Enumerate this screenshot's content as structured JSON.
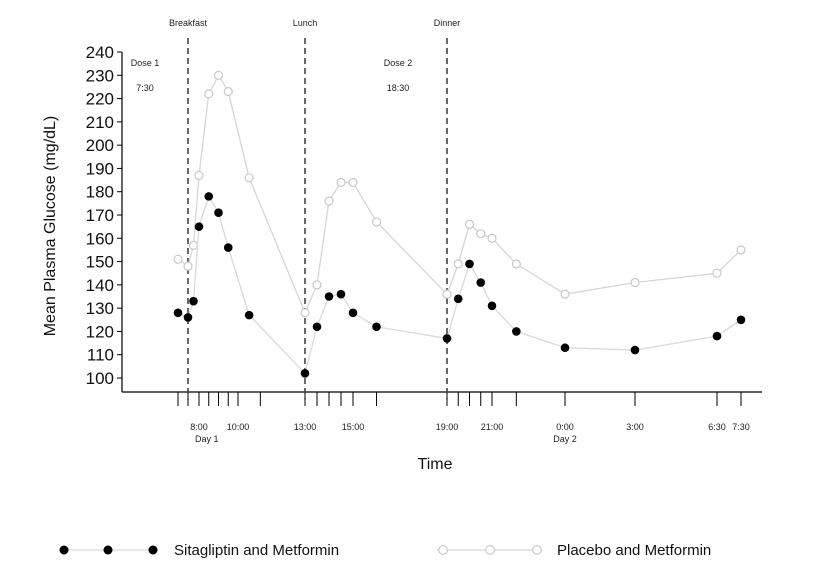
{
  "chart_data": {
    "type": "line",
    "xlabel": "Time",
    "ylabel": "Mean Plasma Glucose (mg/dL)",
    "ylim": [
      100,
      240
    ],
    "yticks": [
      100,
      110,
      120,
      130,
      140,
      150,
      160,
      170,
      180,
      190,
      200,
      210,
      220,
      230,
      240
    ],
    "grid": false,
    "legend_position": "bottom",
    "x_tick_labels": [
      {
        "t": 8,
        "label": "8:00"
      },
      {
        "t": 10,
        "label": "10:00"
      },
      {
        "t": 13,
        "label": "13:00"
      },
      {
        "t": 15,
        "label": "15:00"
      },
      {
        "t": 19,
        "label": "19:00"
      },
      {
        "t": 21,
        "label": "21:00"
      },
      {
        "t": 24,
        "label": "0:00"
      },
      {
        "t": 27,
        "label": "3:00"
      },
      {
        "t": 30.5,
        "label": "6:30"
      },
      {
        "t": 31.5,
        "label": "7:30"
      }
    ],
    "x_minor_ticks": [
      7,
      7.5,
      8,
      8.5,
      9,
      9.5,
      10,
      11,
      13,
      13.5,
      14,
      14.5,
      15,
      16,
      19,
      19.5,
      20,
      20.5,
      21,
      22,
      24,
      27,
      30.5,
      31.5
    ],
    "day_labels": [
      {
        "t": 8.4,
        "label": "Day 1"
      },
      {
        "t": 24,
        "label": "Day 2"
      }
    ],
    "meal_lines": [
      {
        "t": 7.5,
        "label": "Breakfast"
      },
      {
        "t": 13,
        "label": "Lunch"
      },
      {
        "t": 19,
        "label": "Dinner"
      }
    ],
    "dose_annotations": [
      {
        "t": 7.3,
        "label": "Dose 1",
        "time": "7:30"
      },
      {
        "t": 18.3,
        "label": "Dose 2",
        "time": "18:30"
      }
    ],
    "series": [
      {
        "name": "Sitagliptin and Metformin",
        "marker": "filled",
        "color": "#000000",
        "points": [
          {
            "t": 7,
            "y": 128
          },
          {
            "t": 7.5,
            "y": 126
          },
          {
            "t": 7.75,
            "y": 133
          },
          {
            "t": 8,
            "y": 165
          },
          {
            "t": 8.5,
            "y": 178
          },
          {
            "t": 9,
            "y": 171
          },
          {
            "t": 9.5,
            "y": 156
          },
          {
            "t": 10.5,
            "y": 127
          },
          {
            "t": 13,
            "y": 102
          },
          {
            "t": 13.5,
            "y": 122
          },
          {
            "t": 14,
            "y": 135
          },
          {
            "t": 14.5,
            "y": 136
          },
          {
            "t": 15,
            "y": 128
          },
          {
            "t": 16,
            "y": 122
          },
          {
            "t": 19,
            "y": 117
          },
          {
            "t": 19.5,
            "y": 134
          },
          {
            "t": 20,
            "y": 149
          },
          {
            "t": 20.5,
            "y": 141
          },
          {
            "t": 21,
            "y": 131
          },
          {
            "t": 22,
            "y": 120
          },
          {
            "t": 24,
            "y": 113
          },
          {
            "t": 27,
            "y": 112
          },
          {
            "t": 30.5,
            "y": 118
          },
          {
            "t": 31.5,
            "y": 125
          }
        ]
      },
      {
        "name": "Placebo and Metformin",
        "marker": "open",
        "color": "#cccccc",
        "points": [
          {
            "t": 7,
            "y": 151
          },
          {
            "t": 7.5,
            "y": 148
          },
          {
            "t": 7.75,
            "y": 157
          },
          {
            "t": 8,
            "y": 187
          },
          {
            "t": 8.5,
            "y": 222
          },
          {
            "t": 9,
            "y": 230
          },
          {
            "t": 9.5,
            "y": 223
          },
          {
            "t": 10.5,
            "y": 186
          },
          {
            "t": 13,
            "y": 128
          },
          {
            "t": 13.5,
            "y": 140
          },
          {
            "t": 14,
            "y": 176
          },
          {
            "t": 14.5,
            "y": 184
          },
          {
            "t": 15,
            "y": 184
          },
          {
            "t": 16,
            "y": 167
          },
          {
            "t": 19,
            "y": 136
          },
          {
            "t": 19.5,
            "y": 149
          },
          {
            "t": 20,
            "y": 166
          },
          {
            "t": 20.5,
            "y": 162
          },
          {
            "t": 21,
            "y": 160
          },
          {
            "t": 22,
            "y": 149
          },
          {
            "t": 24,
            "y": 136
          },
          {
            "t": 27,
            "y": 141
          },
          {
            "t": 30.5,
            "y": 145
          },
          {
            "t": 31.5,
            "y": 155
          }
        ]
      }
    ]
  }
}
